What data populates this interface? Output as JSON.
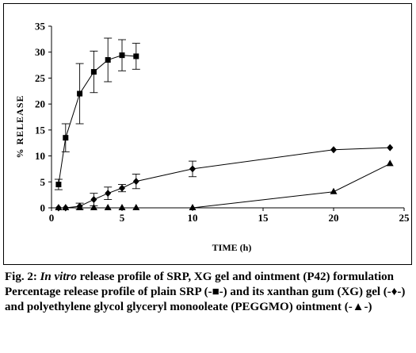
{
  "chart_data": {
    "type": "line",
    "xlabel": "TIME (h)",
    "ylabel": "% RELEASE",
    "xlim": [
      0,
      25
    ],
    "ylim": [
      0,
      35
    ],
    "xticks": [
      0,
      5,
      10,
      15,
      20,
      25
    ],
    "yticks": [
      0,
      5,
      10,
      15,
      20,
      25,
      30,
      35
    ],
    "grid": false,
    "legend": "none",
    "series": [
      {
        "name": "plain SRP",
        "marker": "square",
        "x": [
          0.5,
          1,
          2,
          3,
          4,
          5,
          6
        ],
        "y": [
          4.5,
          13.5,
          22,
          26.2,
          28.5,
          29.4,
          29.2
        ],
        "err": [
          1.0,
          2.7,
          5.8,
          4.0,
          4.2,
          3.0,
          2.5
        ]
      },
      {
        "name": "xanthan gum (XG) gel",
        "marker": "diamond",
        "x": [
          0.5,
          1,
          2,
          3,
          4,
          5,
          6,
          10,
          20,
          24
        ],
        "y": [
          0,
          0,
          0.3,
          1.6,
          2.8,
          3.8,
          5.1,
          7.5,
          11.2,
          11.6
        ],
        "err": [
          0,
          0,
          0.6,
          1.2,
          1.2,
          0.7,
          1.4,
          1.5,
          0,
          0
        ]
      },
      {
        "name": "polyethylene glycol glyceryl monooleate (PEGGMO) ointment",
        "marker": "triangle",
        "x": [
          0.5,
          1,
          2,
          3,
          4,
          5,
          6,
          10,
          20,
          24
        ],
        "y": [
          0,
          0,
          0,
          0,
          0,
          0,
          0,
          0,
          3.1,
          8.5
        ],
        "err": [
          0,
          0,
          0,
          0,
          0,
          0,
          0,
          0,
          0,
          0
        ]
      }
    ]
  },
  "caption": {
    "fig_label": "Fig. 2:",
    "in_vitro": "In vitro",
    "title_rest": "release profile of SRP, XG gel and ointment (P42) formulation",
    "line2": "Percentage release profile of plain SRP (-■-) and its xanthan gum (XG) gel (-♦-) and polyethylene glycol glyceryl monooleate (PEGGMO) ointment (-▲-)"
  }
}
